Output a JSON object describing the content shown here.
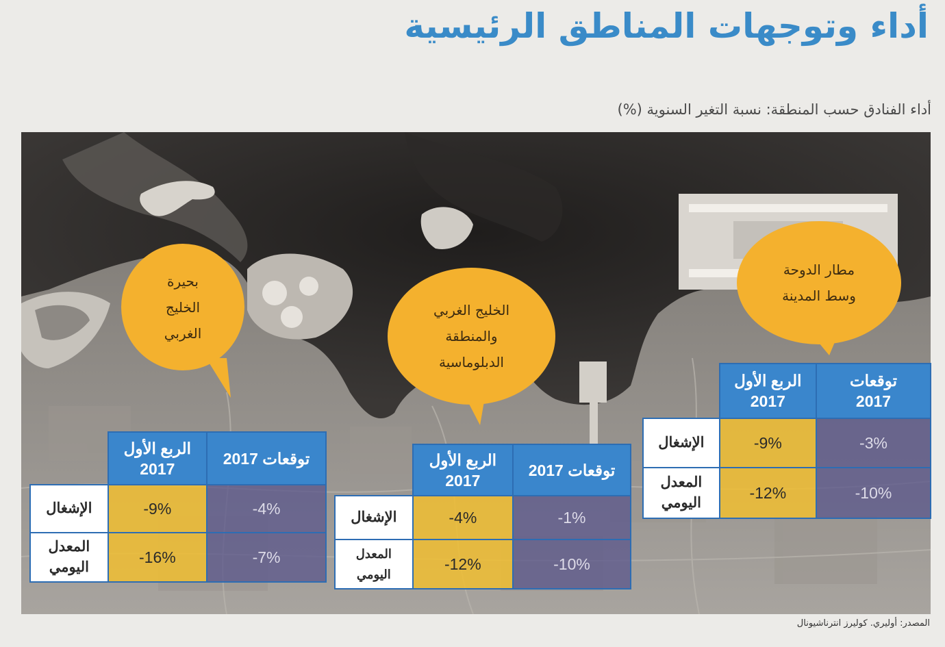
{
  "title": "أداء وتوجهات المناطق الرئيسية",
  "subtitle": "أداء الفنادق حسب المنطقة: نسبة التغير السنوية (%)",
  "source": "المصدر: أوليري. كوليرز انترناشيونال",
  "colors": {
    "title": "#3a8bc8",
    "bubble": "#f4b12e",
    "table_header": "#3a86cc",
    "quarter_cell": "#f0be32",
    "forecast_cell": "#5c588c"
  },
  "table_labels": {
    "forecast_2017": "توقعات 2017",
    "q1_2017": "الربع الأول 2017",
    "occupancy": "الإشغال",
    "daily_rate": "المعدل اليومي"
  },
  "zones": [
    {
      "name": "بحيرة\nالخليج\nالغربي",
      "table": {
        "col_forecast": "توقعات 2017",
        "col_q1": "الربع الأول\n2017",
        "row_occupancy": "الإشغال",
        "row_daily_rate": "المعدل\nاليومي",
        "occupancy_q1": "-9%",
        "occupancy_forecast": "-4%",
        "daily_rate_q1": "-16%",
        "daily_rate_forecast": "-7%"
      }
    },
    {
      "name": "الخليج الغربي\nوالمنطقة\nالدبلوماسية",
      "table": {
        "col_forecast": "توقعات 2017",
        "col_q1": "الربع الأول\n2017",
        "row_occupancy": "الإشغال",
        "row_daily_rate": "المعدل\nاليومي",
        "occupancy_q1": "-4%",
        "occupancy_forecast": "-1%",
        "daily_rate_q1": "-12%",
        "daily_rate_forecast": "-10%"
      }
    },
    {
      "name": "مطار الدوحة\nوسط المدينة",
      "table": {
        "col_forecast": "توقعات\n2017",
        "col_q1": "الربع الأول\n2017",
        "row_occupancy": "الإشغال",
        "row_daily_rate": "المعدل\nاليومي",
        "occupancy_q1": "-9%",
        "occupancy_forecast": "-3%",
        "daily_rate_q1": "-12%",
        "daily_rate_forecast": "-10%"
      }
    }
  ]
}
